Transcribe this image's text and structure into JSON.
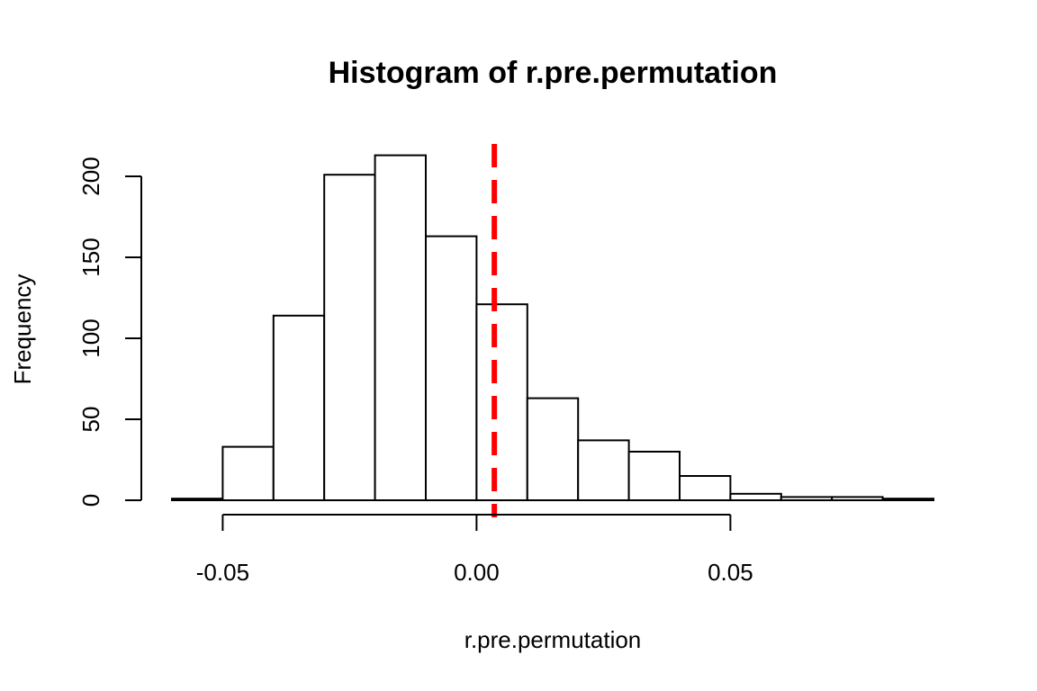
{
  "chart_data": {
    "type": "bar",
    "title": "Histogram of r.pre.permutation",
    "xlabel": "r.pre.permutation",
    "ylabel": "Frequency",
    "xlim": [
      -0.06,
      0.09
    ],
    "ylim": [
      0,
      220
    ],
    "x_ticks": [
      -0.05,
      0.0,
      0.05
    ],
    "x_tick_labels": [
      "-0.05",
      "0.00",
      "0.05"
    ],
    "y_ticks": [
      0,
      50,
      100,
      150,
      200
    ],
    "y_tick_labels": [
      "0",
      "50",
      "100",
      "150",
      "200"
    ],
    "bins": [
      {
        "start": -0.06,
        "end": -0.05,
        "count": 1
      },
      {
        "start": -0.05,
        "end": -0.04,
        "count": 33
      },
      {
        "start": -0.04,
        "end": -0.03,
        "count": 114
      },
      {
        "start": -0.03,
        "end": -0.02,
        "count": 201
      },
      {
        "start": -0.02,
        "end": -0.01,
        "count": 213
      },
      {
        "start": -0.01,
        "end": 0.0,
        "count": 163
      },
      {
        "start": 0.0,
        "end": 0.01,
        "count": 121
      },
      {
        "start": 0.01,
        "end": 0.02,
        "count": 63
      },
      {
        "start": 0.02,
        "end": 0.03,
        "count": 37
      },
      {
        "start": 0.03,
        "end": 0.04,
        "count": 30
      },
      {
        "start": 0.04,
        "end": 0.05,
        "count": 15
      },
      {
        "start": 0.05,
        "end": 0.06,
        "count": 4
      },
      {
        "start": 0.06,
        "end": 0.07,
        "count": 2
      },
      {
        "start": 0.07,
        "end": 0.08,
        "count": 2
      },
      {
        "start": 0.08,
        "end": 0.09,
        "count": 1
      }
    ],
    "reference_line": {
      "x": 0.0035,
      "color": "#ff0000",
      "style": "dashed"
    }
  }
}
